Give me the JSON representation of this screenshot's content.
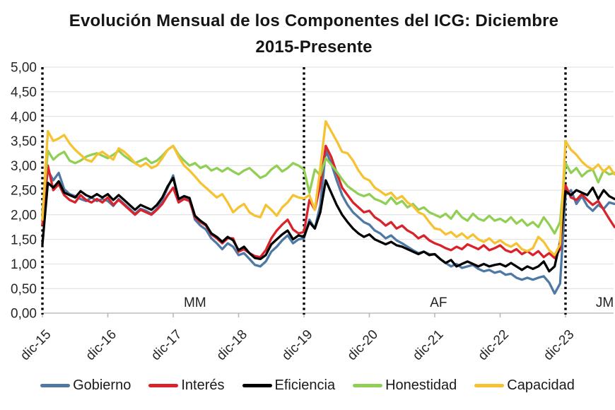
{
  "title": {
    "line1": "Evolución Mensual de los Componentes del ICG: Diciembre",
    "line2": "2015-Presente"
  },
  "chart_data": {
    "type": "line",
    "title": "Evolución Mensual de los Componentes del ICG: Diciembre 2015-Presente",
    "ylabel": "",
    "xlabel": "",
    "ylim": [
      0,
      5
    ],
    "y_step": 0.5,
    "grid": true,
    "legend_position": "bottom",
    "y_tick_labels": [
      "5,00",
      "4,50",
      "4,00",
      "3,50",
      "3,00",
      "2,50",
      "2,00",
      "1,50",
      "1,00",
      "0,50",
      "0,00"
    ],
    "x_tick_labels": [
      "dic-15",
      "dic-16",
      "dic-17",
      "dic-18",
      "dic-19",
      "dic-20",
      "dic-21",
      "dic-22",
      "dic-23"
    ],
    "months_per_tick": 12,
    "months_total": 106,
    "period_markers": [
      {
        "label": "MM",
        "line_month": 0,
        "label_month": 28
      },
      {
        "label": "AF",
        "line_month": 48,
        "label_month": 72.7
      },
      {
        "label": "JM",
        "line_month": 96,
        "label_month": 103.2
      }
    ],
    "series": [
      {
        "name": "Gobierno",
        "color": "#4f78a5",
        "values": [
          1.95,
          2.9,
          2.7,
          2.85,
          2.52,
          2.42,
          2.38,
          2.32,
          2.28,
          2.35,
          2.28,
          2.32,
          2.28,
          2.18,
          2.32,
          2.22,
          2.12,
          2.02,
          2.12,
          2.08,
          2.02,
          2.12,
          2.3,
          2.55,
          2.8,
          2.3,
          2.35,
          2.32,
          1.9,
          1.78,
          1.7,
          1.52,
          1.42,
          1.3,
          1.42,
          1.35,
          1.18,
          1.22,
          1.1,
          0.98,
          0.95,
          1.05,
          1.25,
          1.35,
          1.48,
          1.58,
          1.42,
          1.5,
          1.52,
          1.9,
          1.72,
          2.2,
          3.3,
          3.05,
          2.7,
          2.4,
          2.2,
          2.05,
          1.95,
          1.85,
          1.8,
          1.68,
          1.62,
          1.52,
          1.58,
          1.48,
          1.42,
          1.35,
          1.28,
          1.22,
          1.25,
          1.2,
          1.2,
          1.1,
          1.02,
          0.95,
          1.0,
          0.92,
          0.95,
          0.98,
          0.9,
          0.85,
          0.88,
          0.82,
          0.85,
          0.78,
          0.8,
          0.72,
          0.68,
          0.72,
          0.68,
          0.72,
          0.75,
          0.62,
          0.4,
          0.6,
          2.4,
          2.5,
          2.22,
          2.38,
          2.18,
          2.08,
          2.2,
          2.12,
          2.25,
          2.22
        ]
      },
      {
        "name": "Interés",
        "color": "#d9222a",
        "values": [
          1.8,
          3.0,
          2.5,
          2.62,
          2.4,
          2.3,
          2.25,
          2.4,
          2.3,
          2.25,
          2.32,
          2.25,
          2.35,
          2.2,
          2.3,
          2.2,
          2.1,
          2.0,
          2.1,
          2.05,
          2.0,
          2.1,
          2.22,
          2.4,
          2.55,
          2.25,
          2.32,
          2.28,
          1.95,
          1.85,
          1.78,
          1.6,
          1.52,
          1.42,
          1.52,
          1.52,
          1.25,
          1.3,
          1.22,
          1.16,
          1.14,
          1.28,
          1.52,
          1.68,
          1.8,
          1.9,
          1.7,
          1.62,
          1.65,
          2.3,
          2.1,
          2.6,
          3.4,
          3.18,
          2.85,
          2.55,
          2.4,
          2.25,
          2.15,
          2.05,
          2.08,
          1.95,
          1.88,
          1.78,
          1.85,
          1.72,
          1.78,
          1.68,
          1.62,
          1.52,
          1.58,
          1.48,
          1.42,
          1.38,
          1.32,
          1.28,
          1.35,
          1.3,
          1.4,
          1.35,
          1.3,
          1.38,
          1.28,
          1.32,
          1.38,
          1.28,
          1.24,
          1.3,
          1.2,
          1.26,
          1.18,
          1.26,
          1.14,
          1.22,
          1.12,
          1.3,
          2.6,
          2.35,
          2.3,
          2.42,
          2.3,
          2.2,
          2.28,
          2.1,
          1.92,
          1.75
        ]
      },
      {
        "name": "Eficiencia",
        "color": "#000000",
        "values": [
          1.4,
          2.65,
          2.55,
          2.68,
          2.45,
          2.4,
          2.35,
          2.48,
          2.4,
          2.35,
          2.42,
          2.35,
          2.42,
          2.3,
          2.4,
          2.3,
          2.2,
          2.1,
          2.2,
          2.15,
          2.1,
          2.2,
          2.35,
          2.58,
          2.75,
          2.32,
          2.38,
          2.34,
          1.98,
          1.88,
          1.8,
          1.62,
          1.55,
          1.45,
          1.55,
          1.48,
          1.28,
          1.35,
          1.22,
          1.12,
          1.1,
          1.18,
          1.4,
          1.5,
          1.6,
          1.68,
          1.5,
          1.58,
          1.55,
          1.85,
          1.72,
          2.05,
          2.7,
          2.45,
          2.2,
          2.0,
          1.85,
          1.72,
          1.62,
          1.55,
          1.6,
          1.5,
          1.45,
          1.4,
          1.45,
          1.38,
          1.35,
          1.3,
          1.25,
          1.2,
          1.25,
          1.18,
          1.2,
          1.1,
          1.02,
          1.08,
          0.95,
          1.0,
          1.05,
          1.0,
          0.95,
          1.0,
          0.95,
          0.98,
          1.0,
          0.95,
          1.02,
          0.95,
          0.88,
          0.95,
          0.9,
          0.95,
          1.05,
          0.85,
          0.95,
          1.45,
          2.48,
          2.4,
          2.5,
          2.45,
          2.4,
          2.55,
          2.32,
          2.5,
          2.38,
          2.32
        ]
      },
      {
        "name": "Honestidad",
        "color": "#90cf54",
        "values": [
          2.05,
          3.3,
          3.12,
          3.22,
          3.28,
          3.1,
          3.05,
          3.1,
          3.18,
          3.22,
          3.25,
          3.2,
          3.15,
          3.22,
          3.3,
          3.2,
          3.12,
          3.05,
          3.1,
          3.15,
          3.05,
          3.1,
          3.2,
          3.32,
          3.4,
          3.22,
          3.1,
          3.0,
          3.05,
          2.95,
          3.0,
          2.9,
          2.95,
          2.88,
          2.95,
          2.88,
          2.82,
          2.9,
          2.95,
          2.85,
          2.75,
          2.8,
          2.92,
          3.0,
          2.88,
          2.95,
          3.05,
          3.0,
          2.92,
          2.45,
          2.92,
          2.8,
          3.15,
          3.02,
          2.88,
          2.72,
          2.58,
          2.5,
          2.42,
          2.38,
          2.42,
          2.32,
          2.28,
          2.22,
          2.35,
          2.22,
          2.28,
          2.15,
          2.22,
          2.1,
          2.15,
          2.05,
          2.0,
          1.95,
          2.02,
          1.92,
          2.08,
          1.95,
          1.88,
          2.02,
          1.92,
          1.88,
          1.98,
          1.88,
          1.92,
          1.85,
          1.95,
          1.82,
          1.9,
          1.78,
          1.85,
          1.75,
          1.95,
          1.8,
          1.62,
          1.85,
          3.05,
          2.85,
          2.95,
          2.78,
          2.88,
          2.92,
          2.66,
          2.9,
          2.82,
          2.85
        ]
      },
      {
        "name": "Capacidad",
        "color": "#f6c231",
        "values": [
          1.9,
          3.7,
          3.5,
          3.55,
          3.62,
          3.45,
          3.32,
          3.22,
          3.12,
          3.08,
          3.22,
          3.28,
          3.2,
          3.12,
          3.35,
          3.28,
          3.18,
          3.05,
          2.98,
          3.05,
          2.95,
          3.0,
          3.15,
          3.32,
          3.4,
          3.18,
          3.0,
          2.9,
          2.78,
          2.65,
          2.55,
          2.45,
          2.35,
          2.42,
          2.25,
          2.05,
          2.15,
          2.22,
          2.05,
          1.98,
          1.95,
          2.2,
          2.1,
          1.98,
          2.15,
          2.25,
          2.4,
          2.35,
          2.33,
          2.4,
          2.1,
          2.95,
          3.9,
          3.7,
          3.5,
          3.28,
          3.25,
          3.1,
          2.9,
          2.75,
          2.7,
          2.55,
          2.48,
          2.4,
          2.45,
          2.32,
          2.38,
          2.25,
          2.18,
          2.05,
          2.0,
          1.85,
          1.72,
          1.7,
          1.6,
          1.65,
          1.55,
          1.62,
          1.52,
          1.6,
          1.5,
          1.45,
          1.52,
          1.42,
          1.48,
          1.4,
          1.35,
          1.42,
          1.3,
          1.26,
          1.32,
          1.55,
          1.45,
          1.28,
          1.18,
          1.4,
          3.5,
          3.32,
          3.22,
          3.08,
          2.98,
          2.92,
          3.02,
          2.88,
          2.98,
          2.82
        ]
      }
    ]
  }
}
